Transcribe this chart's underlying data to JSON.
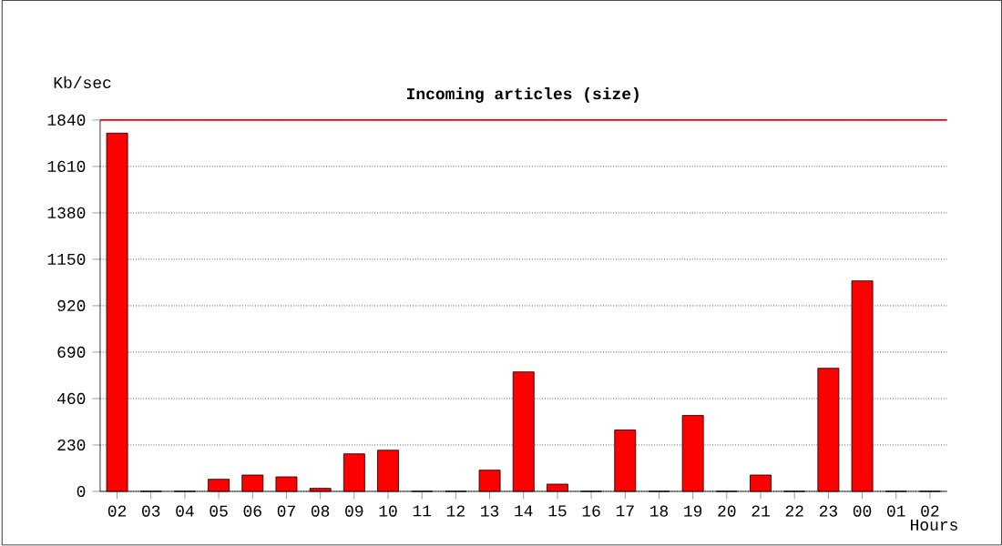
{
  "chart_data": {
    "type": "bar",
    "title": "Incoming articles (size)",
    "xlabel": "Hours",
    "ylabel": "Kb/sec",
    "categories": [
      "02",
      "03",
      "04",
      "05",
      "06",
      "07",
      "08",
      "09",
      "10",
      "11",
      "12",
      "13",
      "14",
      "15",
      "16",
      "17",
      "18",
      "19",
      "20",
      "21",
      "22",
      "23",
      "00",
      "01",
      "02"
    ],
    "values": [
      1775,
      0,
      0,
      60,
      81,
      72,
      15,
      186,
      204,
      0,
      0,
      105,
      592,
      36,
      0,
      304,
      0,
      376,
      0,
      81,
      0,
      610,
      1043,
      0,
      0
    ],
    "color": "#ff0000",
    "ylim": [
      0,
      1840
    ],
    "yticks": [
      0,
      230,
      460,
      690,
      920,
      1150,
      1380,
      1610,
      1840
    ],
    "grid": "y",
    "ref_lines": [
      {
        "axis": "y",
        "value": 1840,
        "color": "#ff0000"
      }
    ]
  }
}
